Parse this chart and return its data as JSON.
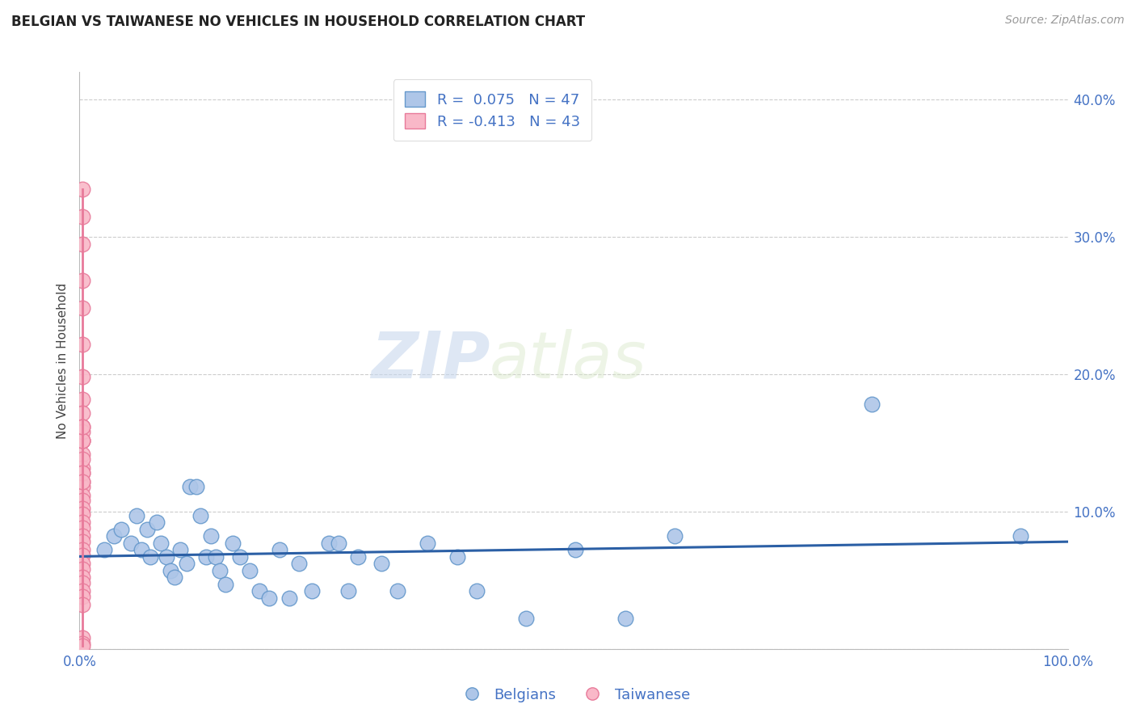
{
  "title": "BELGIAN VS TAIWANESE NO VEHICLES IN HOUSEHOLD CORRELATION CHART",
  "source": "Source: ZipAtlas.com",
  "ylabel": "No Vehicles in Household",
  "xlim": [
    0.0,
    1.0
  ],
  "ylim": [
    0.0,
    0.42
  ],
  "xticks": [
    0.0,
    0.2,
    0.4,
    0.6,
    0.8,
    1.0
  ],
  "xtick_labels": [
    "0.0%",
    "",
    "",
    "",
    "",
    "100.0%"
  ],
  "yticks": [
    0.0,
    0.1,
    0.2,
    0.3,
    0.4
  ],
  "ytick_labels": [
    "",
    "10.0%",
    "20.0%",
    "30.0%",
    "40.0%"
  ],
  "belgian_color": "#aec6e8",
  "taiwanese_color": "#f9b8c8",
  "belgian_edge": "#6699cc",
  "taiwanese_edge": "#e87a9a",
  "trendline_belgian_color": "#2b5fa5",
  "trendline_taiwanese_color": "#e87a9a",
  "belgian_R": 0.075,
  "belgian_N": 47,
  "taiwanese_R": -0.413,
  "taiwanese_N": 43,
  "watermark_zip": "ZIP",
  "watermark_atlas": "atlas",
  "legend_entries": [
    "Belgians",
    "Taiwanese"
  ],
  "background_color": "#ffffff",
  "grid_color": "#cccccc",
  "belgian_x": [
    0.025,
    0.035,
    0.042,
    0.052,
    0.058,
    0.063,
    0.068,
    0.072,
    0.078,
    0.082,
    0.088,
    0.092,
    0.096,
    0.102,
    0.108,
    0.112,
    0.118,
    0.122,
    0.128,
    0.133,
    0.138,
    0.142,
    0.148,
    0.155,
    0.162,
    0.172,
    0.182,
    0.192,
    0.202,
    0.212,
    0.222,
    0.235,
    0.252,
    0.262,
    0.272,
    0.282,
    0.305,
    0.322,
    0.352,
    0.382,
    0.402,
    0.452,
    0.502,
    0.552,
    0.602,
    0.802,
    0.952
  ],
  "belgian_y": [
    0.072,
    0.082,
    0.087,
    0.077,
    0.097,
    0.072,
    0.087,
    0.067,
    0.092,
    0.077,
    0.067,
    0.057,
    0.052,
    0.072,
    0.062,
    0.118,
    0.118,
    0.097,
    0.067,
    0.082,
    0.067,
    0.057,
    0.047,
    0.077,
    0.067,
    0.057,
    0.042,
    0.037,
    0.072,
    0.037,
    0.062,
    0.042,
    0.077,
    0.077,
    0.042,
    0.067,
    0.062,
    0.042,
    0.077,
    0.067,
    0.042,
    0.022,
    0.072,
    0.022,
    0.082,
    0.178,
    0.082
  ],
  "taiwanese_x": [
    0.003,
    0.003,
    0.003,
    0.003,
    0.003,
    0.003,
    0.003,
    0.003,
    0.003,
    0.003,
    0.003,
    0.003,
    0.003,
    0.003,
    0.003,
    0.003,
    0.003,
    0.003,
    0.003,
    0.003,
    0.003,
    0.003,
    0.003,
    0.003,
    0.003,
    0.003,
    0.003,
    0.003,
    0.003,
    0.003,
    0.003,
    0.003,
    0.003,
    0.003,
    0.003,
    0.003,
    0.003,
    0.003,
    0.003,
    0.003,
    0.003,
    0.003,
    0.003
  ],
  "taiwanese_y": [
    0.335,
    0.315,
    0.295,
    0.268,
    0.248,
    0.222,
    0.198,
    0.182,
    0.172,
    0.162,
    0.152,
    0.142,
    0.132,
    0.128,
    0.122,
    0.118,
    0.112,
    0.108,
    0.102,
    0.098,
    0.092,
    0.088,
    0.082,
    0.078,
    0.072,
    0.068,
    0.062,
    0.058,
    0.052,
    0.048,
    0.042,
    0.038,
    0.032,
    0.152,
    0.158,
    0.152,
    0.162,
    0.138,
    0.128,
    0.122,
    0.008,
    0.004,
    0.002
  ]
}
